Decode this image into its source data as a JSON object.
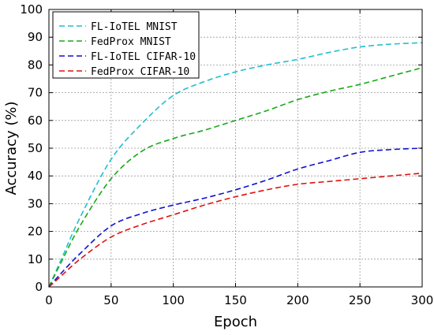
{
  "chart_data": {
    "type": "line",
    "title": "",
    "xlabel": "Epoch",
    "ylabel": "Accuracy (%)",
    "xlim": [
      0,
      300
    ],
    "ylim": [
      0,
      100
    ],
    "xticks": [
      0,
      50,
      100,
      150,
      200,
      250,
      300
    ],
    "yticks": [
      0,
      10,
      20,
      30,
      40,
      50,
      60,
      70,
      80,
      90,
      100
    ],
    "grid": true,
    "legend_position": "top-left",
    "x": [
      0,
      10,
      25,
      50,
      75,
      100,
      125,
      150,
      175,
      200,
      225,
      250,
      275,
      300
    ],
    "series": [
      {
        "name": "FL-IoTEL MNIST",
        "color": "#1fbfcf",
        "values": [
          0,
          10,
          25,
          46,
          59,
          69,
          74,
          77.5,
          80,
          82,
          84.5,
          86.5,
          87.5,
          88
        ]
      },
      {
        "name": "FedProx MNIST",
        "color": "#19a819",
        "values": [
          0,
          9,
          22,
          39,
          49,
          53.5,
          56.5,
          60,
          63.5,
          67.5,
          70.5,
          73,
          76,
          79
        ]
      },
      {
        "name": "FL-IoTEL CIFAR-10",
        "color": "#1010d0",
        "values": [
          0,
          5,
          12,
          22,
          26.5,
          29.5,
          32,
          35,
          38.5,
          42.5,
          45.5,
          48.5,
          49.5,
          50
        ]
      },
      {
        "name": "FedProx CIFAR-10",
        "color": "#e01010",
        "values": [
          0,
          4,
          10,
          18,
          22.5,
          26,
          29.5,
          32.5,
          35,
          37,
          38,
          39,
          40,
          41
        ]
      }
    ]
  }
}
